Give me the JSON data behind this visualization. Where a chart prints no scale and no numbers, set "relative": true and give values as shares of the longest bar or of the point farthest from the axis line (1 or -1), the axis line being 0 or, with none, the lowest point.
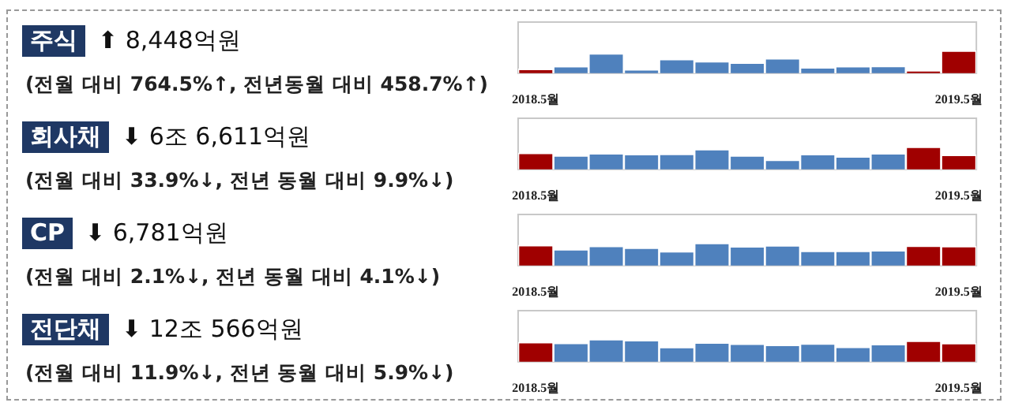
{
  "chart_data": [
    {
      "type": "bar",
      "annotations": [
        "주식",
        "⬆ 8,448억원",
        "(전월 대비 764.5%↑, 전년동월 대비 458.7%↑)"
      ],
      "categories": [
        "2018.5월",
        null,
        null,
        null,
        null,
        null,
        null,
        null,
        null,
        null,
        null,
        null,
        "2019.5월"
      ],
      "relative": true,
      "tick_labels": "x",
      "values": [
        0.18,
        0.3,
        0.88,
        0.16,
        0.62,
        0.52,
        0.46,
        0.66,
        0.25,
        0.3,
        0.31,
        0.1,
        1
      ],
      "colors": [
        "#a00000",
        "#4f81bd",
        "#4f81bd",
        "#4f81bd",
        "#4f81bd",
        "#4f81bd",
        "#4f81bd",
        "#4f81bd",
        "#4f81bd",
        "#4f81bd",
        "#4f81bd",
        "#a00000",
        "#a00000"
      ]
    },
    {
      "type": "bar",
      "annotations": [
        "회사채",
        "⬇ 6조 6,611억원",
        "(전월 대비 33.9%↓, 전년 동월 대비 9.9%↓)"
      ],
      "categories": [
        "2018.5월",
        null,
        null,
        null,
        null,
        null,
        null,
        null,
        null,
        null,
        null,
        null,
        "2019.5월"
      ],
      "relative": true,
      "tick_labels": "x",
      "values": [
        0.73,
        0.61,
        0.71,
        0.67,
        0.68,
        0.89,
        0.61,
        0.42,
        0.67,
        0.57,
        0.71,
        1,
        0.64
      ],
      "colors": [
        "#a00000",
        "#4f81bd",
        "#4f81bd",
        "#4f81bd",
        "#4f81bd",
        "#4f81bd",
        "#4f81bd",
        "#4f81bd",
        "#4f81bd",
        "#4f81bd",
        "#4f81bd",
        "#a00000",
        "#a00000"
      ]
    },
    {
      "type": "bar",
      "annotations": [
        "CP",
        "⬇ 6,781억원",
        "(전월 대비 2.1%↓, 전년 동월 대비 4.1%↓)"
      ],
      "categories": [
        "2018.5월",
        null,
        null,
        null,
        null,
        null,
        null,
        null,
        null,
        null,
        null,
        null,
        "2019.5월"
      ],
      "relative": true,
      "tick_labels": "x",
      "values": [
        0.9,
        0.72,
        0.87,
        0.79,
        0.63,
        1,
        0.85,
        0.89,
        0.65,
        0.65,
        0.67,
        0.88,
        0.86
      ],
      "colors": [
        "#a00000",
        "#4f81bd",
        "#4f81bd",
        "#4f81bd",
        "#4f81bd",
        "#4f81bd",
        "#4f81bd",
        "#4f81bd",
        "#4f81bd",
        "#4f81bd",
        "#4f81bd",
        "#a00000",
        "#a00000"
      ]
    },
    {
      "type": "bar",
      "annotations": [
        "전단채",
        "⬇ 12조 566억원",
        "(전월 대비 11.9%↓, 전년 동월 대비 5.9%↓)"
      ],
      "categories": [
        "2018.5월",
        null,
        null,
        null,
        null,
        null,
        null,
        null,
        null,
        null,
        null,
        null,
        "2019.5월"
      ],
      "relative": true,
      "tick_labels": "x",
      "values": [
        0.87,
        0.83,
        1,
        0.96,
        0.65,
        0.85,
        0.8,
        0.74,
        0.81,
        0.66,
        0.78,
        0.93,
        0.82
      ],
      "colors": [
        "#a00000",
        "#4f81bd",
        "#4f81bd",
        "#4f81bd",
        "#4f81bd",
        "#4f81bd",
        "#4f81bd",
        "#4f81bd",
        "#4f81bd",
        "#4f81bd",
        "#4f81bd",
        "#a00000",
        "#a00000"
      ]
    }
  ]
}
